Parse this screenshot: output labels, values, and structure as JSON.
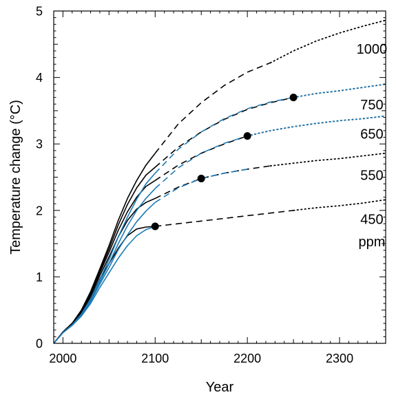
{
  "chart_data": {
    "type": "line",
    "xlabel": "Year",
    "ylabel": "Temperature change (°C)",
    "xlim": [
      1990,
      2350
    ],
    "ylim": [
      0,
      5
    ],
    "x_major_ticks": [
      2000,
      2100,
      2200,
      2300
    ],
    "y_major_ticks": [
      0,
      1,
      2,
      3,
      4,
      5
    ],
    "grid": false,
    "colors": {
      "black": "#000000",
      "blue": "#1a7ab5"
    },
    "labels": [
      {
        "text": "1000",
        "x": 2335,
        "y": 4.43
      },
      {
        "text": "750",
        "x": 2335,
        "y": 3.59
      },
      {
        "text": "650",
        "x": 2335,
        "y": 3.15
      },
      {
        "text": "550",
        "x": 2335,
        "y": 2.53
      },
      {
        "text": "450",
        "x": 2335,
        "y": 1.87
      },
      {
        "text": "ppm",
        "x": 2335,
        "y": 1.53
      }
    ],
    "series": [
      {
        "color": "black",
        "solid": [
          [
            1990,
            0
          ],
          [
            2000,
            0.17
          ],
          [
            2010,
            0.3
          ],
          [
            2020,
            0.5
          ],
          [
            2030,
            0.78
          ],
          [
            2040,
            1.12
          ],
          [
            2050,
            1.47
          ],
          [
            2060,
            1.85
          ],
          [
            2070,
            2.18
          ],
          [
            2080,
            2.45
          ],
          [
            2090,
            2.68
          ],
          [
            2100,
            2.86
          ]
        ],
        "dashed": [
          [
            2100,
            2.86
          ],
          [
            2125,
            3.3
          ],
          [
            2150,
            3.62
          ],
          [
            2175,
            3.88
          ],
          [
            2200,
            4.08
          ],
          [
            2225,
            4.22
          ]
        ],
        "dotted": [
          [
            2225,
            4.22
          ],
          [
            2250,
            4.4
          ],
          [
            2275,
            4.55
          ],
          [
            2300,
            4.67
          ],
          [
            2325,
            4.77
          ],
          [
            2350,
            4.86
          ]
        ]
      },
      {
        "color": "black",
        "solid": [
          [
            1990,
            0
          ],
          [
            2000,
            0.17
          ],
          [
            2010,
            0.3
          ],
          [
            2020,
            0.49
          ],
          [
            2030,
            0.76
          ],
          [
            2040,
            1.09
          ],
          [
            2050,
            1.42
          ],
          [
            2060,
            1.78
          ],
          [
            2070,
            2.09
          ],
          [
            2080,
            2.34
          ],
          [
            2090,
            2.53
          ],
          [
            2100,
            2.65
          ]
        ],
        "dashed": [
          [
            2100,
            2.65
          ],
          [
            2125,
            2.95
          ],
          [
            2150,
            3.18
          ],
          [
            2175,
            3.37
          ],
          [
            2200,
            3.52
          ],
          [
            2225,
            3.62
          ],
          [
            2250,
            3.7
          ]
        ],
        "dotted": [
          [
            2250,
            3.7
          ],
          [
            2275,
            3.76
          ],
          [
            2300,
            3.8
          ],
          [
            2325,
            3.85
          ],
          [
            2350,
            3.9
          ]
        ]
      },
      {
        "color": "black",
        "solid": [
          [
            1990,
            0
          ],
          [
            2000,
            0.17
          ],
          [
            2010,
            0.3
          ],
          [
            2020,
            0.48
          ],
          [
            2030,
            0.74
          ],
          [
            2040,
            1.06
          ],
          [
            2050,
            1.37
          ],
          [
            2060,
            1.7
          ],
          [
            2070,
            1.98
          ],
          [
            2080,
            2.2
          ],
          [
            2090,
            2.36
          ],
          [
            2100,
            2.45
          ]
        ],
        "dashed": [
          [
            2100,
            2.45
          ],
          [
            2125,
            2.68
          ],
          [
            2150,
            2.86
          ],
          [
            2175,
            3.0
          ],
          [
            2200,
            3.12
          ]
        ],
        "dotted": [
          [
            2200,
            3.12
          ],
          [
            2225,
            3.2
          ],
          [
            2250,
            3.26
          ],
          [
            2275,
            3.31
          ],
          [
            2300,
            3.35
          ],
          [
            2325,
            3.38
          ],
          [
            2350,
            3.42
          ]
        ]
      },
      {
        "color": "black",
        "solid": [
          [
            1990,
            0
          ],
          [
            2000,
            0.17
          ],
          [
            2010,
            0.3
          ],
          [
            2020,
            0.47
          ],
          [
            2030,
            0.72
          ],
          [
            2040,
            1.02
          ],
          [
            2050,
            1.3
          ],
          [
            2060,
            1.6
          ],
          [
            2070,
            1.85
          ],
          [
            2080,
            2.02
          ],
          [
            2090,
            2.12
          ],
          [
            2100,
            2.18
          ]
        ],
        "dashed": [
          [
            2100,
            2.18
          ],
          [
            2125,
            2.35
          ],
          [
            2150,
            2.48
          ],
          [
            2175,
            2.56
          ],
          [
            2200,
            2.62
          ],
          [
            2225,
            2.67
          ]
        ],
        "dotted": [
          [
            2225,
            2.67
          ],
          [
            2250,
            2.71
          ],
          [
            2275,
            2.75
          ],
          [
            2300,
            2.78
          ],
          [
            2325,
            2.82
          ],
          [
            2350,
            2.86
          ]
        ]
      },
      {
        "color": "black",
        "solid": [
          [
            1990,
            0
          ],
          [
            2000,
            0.17
          ],
          [
            2010,
            0.3
          ],
          [
            2020,
            0.46
          ],
          [
            2030,
            0.69
          ],
          [
            2040,
            0.97
          ],
          [
            2050,
            1.2
          ],
          [
            2060,
            1.43
          ],
          [
            2070,
            1.62
          ],
          [
            2080,
            1.72
          ],
          [
            2090,
            1.75
          ],
          [
            2100,
            1.76
          ]
        ],
        "dashed": [
          [
            2100,
            1.76
          ],
          [
            2125,
            1.8
          ],
          [
            2150,
            1.84
          ],
          [
            2175,
            1.88
          ],
          [
            2200,
            1.92
          ],
          [
            2225,
            1.96
          ],
          [
            2250,
            2.0
          ]
        ],
        "dotted": [
          [
            2250,
            2.0
          ],
          [
            2275,
            2.04
          ],
          [
            2300,
            2.07
          ],
          [
            2325,
            2.11
          ],
          [
            2350,
            2.16
          ]
        ]
      },
      {
        "color": "blue",
        "solid": [
          [
            1990,
            0
          ],
          [
            2000,
            0.16
          ],
          [
            2010,
            0.28
          ],
          [
            2020,
            0.44
          ],
          [
            2030,
            0.67
          ],
          [
            2040,
            0.96
          ],
          [
            2050,
            1.26
          ],
          [
            2060,
            1.6
          ],
          [
            2070,
            1.9
          ],
          [
            2080,
            2.17
          ],
          [
            2090,
            2.4
          ],
          [
            2100,
            2.56
          ]
        ],
        "dashed": [
          [
            2100,
            2.56
          ],
          [
            2125,
            2.92
          ],
          [
            2150,
            3.18
          ],
          [
            2175,
            3.38
          ],
          [
            2200,
            3.53
          ],
          [
            2225,
            3.63
          ],
          [
            2250,
            3.7
          ]
        ],
        "dotted": [
          [
            2250,
            3.7
          ],
          [
            2275,
            3.76
          ],
          [
            2300,
            3.8
          ],
          [
            2325,
            3.85
          ],
          [
            2350,
            3.9
          ]
        ]
      },
      {
        "color": "blue",
        "solid": [
          [
            1990,
            0
          ],
          [
            2000,
            0.16
          ],
          [
            2010,
            0.28
          ],
          [
            2020,
            0.43
          ],
          [
            2030,
            0.65
          ],
          [
            2040,
            0.92
          ],
          [
            2050,
            1.2
          ],
          [
            2060,
            1.5
          ],
          [
            2070,
            1.77
          ],
          [
            2080,
            2.0
          ],
          [
            2090,
            2.18
          ],
          [
            2100,
            2.33
          ]
        ],
        "dashed": [
          [
            2100,
            2.33
          ],
          [
            2125,
            2.64
          ],
          [
            2150,
            2.86
          ],
          [
            2175,
            3.01
          ],
          [
            2200,
            3.12
          ]
        ],
        "dotted": [
          [
            2200,
            3.12
          ],
          [
            2225,
            3.2
          ],
          [
            2250,
            3.26
          ],
          [
            2275,
            3.31
          ],
          [
            2300,
            3.35
          ],
          [
            2325,
            3.38
          ],
          [
            2350,
            3.42
          ]
        ]
      },
      {
        "color": "blue",
        "solid": [
          [
            1990,
            0
          ],
          [
            2000,
            0.16
          ],
          [
            2010,
            0.27
          ],
          [
            2020,
            0.42
          ],
          [
            2030,
            0.63
          ],
          [
            2040,
            0.89
          ],
          [
            2050,
            1.14
          ],
          [
            2060,
            1.41
          ],
          [
            2070,
            1.63
          ],
          [
            2080,
            1.83
          ],
          [
            2090,
            1.99
          ],
          [
            2100,
            2.12
          ]
        ],
        "dashed": [
          [
            2100,
            2.12
          ],
          [
            2125,
            2.34
          ],
          [
            2150,
            2.48
          ],
          [
            2175,
            2.56
          ],
          [
            2200,
            2.62
          ]
        ]
      },
      {
        "color": "blue",
        "solid": [
          [
            1990,
            0
          ],
          [
            2000,
            0.16
          ],
          [
            2010,
            0.27
          ],
          [
            2020,
            0.41
          ],
          [
            2030,
            0.6
          ],
          [
            2040,
            0.84
          ],
          [
            2050,
            1.06
          ],
          [
            2060,
            1.28
          ],
          [
            2070,
            1.47
          ],
          [
            2080,
            1.62
          ],
          [
            2090,
            1.71
          ],
          [
            2100,
            1.76
          ]
        ]
      }
    ],
    "markers": [
      {
        "x": 2100,
        "y": 1.76
      },
      {
        "x": 2150,
        "y": 2.48
      },
      {
        "x": 2200,
        "y": 3.12
      },
      {
        "x": 2250,
        "y": 3.7
      }
    ]
  }
}
